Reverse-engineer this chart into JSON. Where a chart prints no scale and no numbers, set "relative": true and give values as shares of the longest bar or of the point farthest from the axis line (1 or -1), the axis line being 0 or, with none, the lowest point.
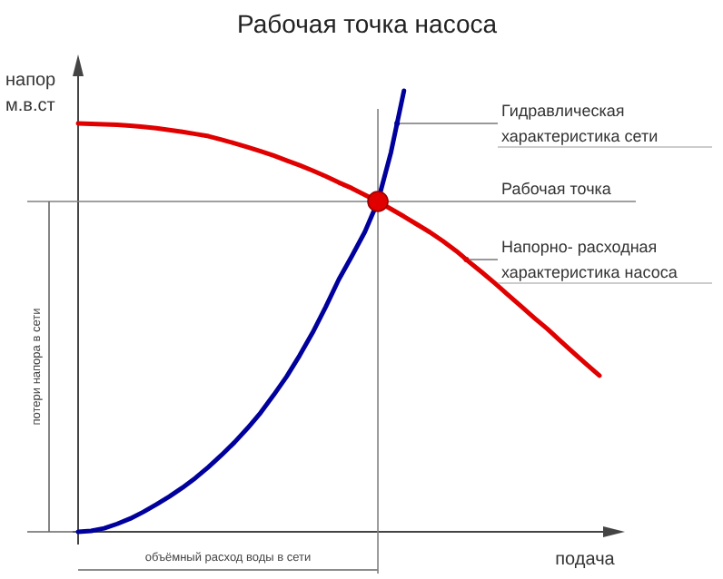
{
  "chart_data": {
    "type": "line",
    "title": "Рабочая точка насоса",
    "ylabel": "напор м.в.ст",
    "xlabel": "подача",
    "relative": true,
    "marker": "none",
    "line_style": "solid",
    "categories": [
      null,
      null,
      null,
      null,
      null,
      null,
      null,
      null,
      null,
      null,
      null,
      null,
      null,
      null,
      null,
      null,
      null,
      null,
      null,
      null,
      null,
      null,
      null,
      null,
      null,
      null,
      null,
      null,
      null,
      null,
      null,
      null,
      null,
      null,
      null,
      null,
      null,
      null,
      null,
      null,
      null
    ],
    "series": [
      {
        "name": "Гидравлическая характеристика сети",
        "color": "#00009c",
        "values": [
          0,
          0.002,
          0.008,
          0.018,
          0.03,
          0.045,
          0.062,
          0.08,
          0.1,
          0.122,
          0.147,
          0.174,
          0.203,
          0.235,
          0.27,
          0.31,
          0.352,
          0.4,
          0.452,
          0.51,
          0.572,
          0.625,
          0.68,
          0.749,
          0.86,
          1,
          null,
          null,
          null,
          null,
          null,
          null,
          null,
          null,
          null,
          null,
          null,
          null,
          null,
          null,
          null
        ]
      },
      {
        "name": "Напорно- расходная характеристика насоса",
        "color": "#e00000",
        "values": [
          0.926,
          0.925,
          0.924,
          0.923,
          0.921,
          0.918,
          0.915,
          0.911,
          0.907,
          0.902,
          0.897,
          0.889,
          0.881,
          0.872,
          0.863,
          0.853,
          0.842,
          0.831,
          0.819,
          0.806,
          0.792,
          0.779,
          0.764,
          0.749,
          0.732,
          0.715,
          0.697,
          0.679,
          0.659,
          0.637,
          0.612,
          0.588,
          0.563,
          0.537,
          0.511,
          0.485,
          0.46,
          0.433,
          0.406,
          0.38,
          0.354
        ]
      }
    ],
    "ref_lines": [
      {
        "axis": "y",
        "value": 0.749,
        "label": "Рабочая точка",
        "color": "#808080"
      }
    ],
    "annotations": [
      "потери напора в сети",
      "объёмный расход воды в сети"
    ]
  }
}
